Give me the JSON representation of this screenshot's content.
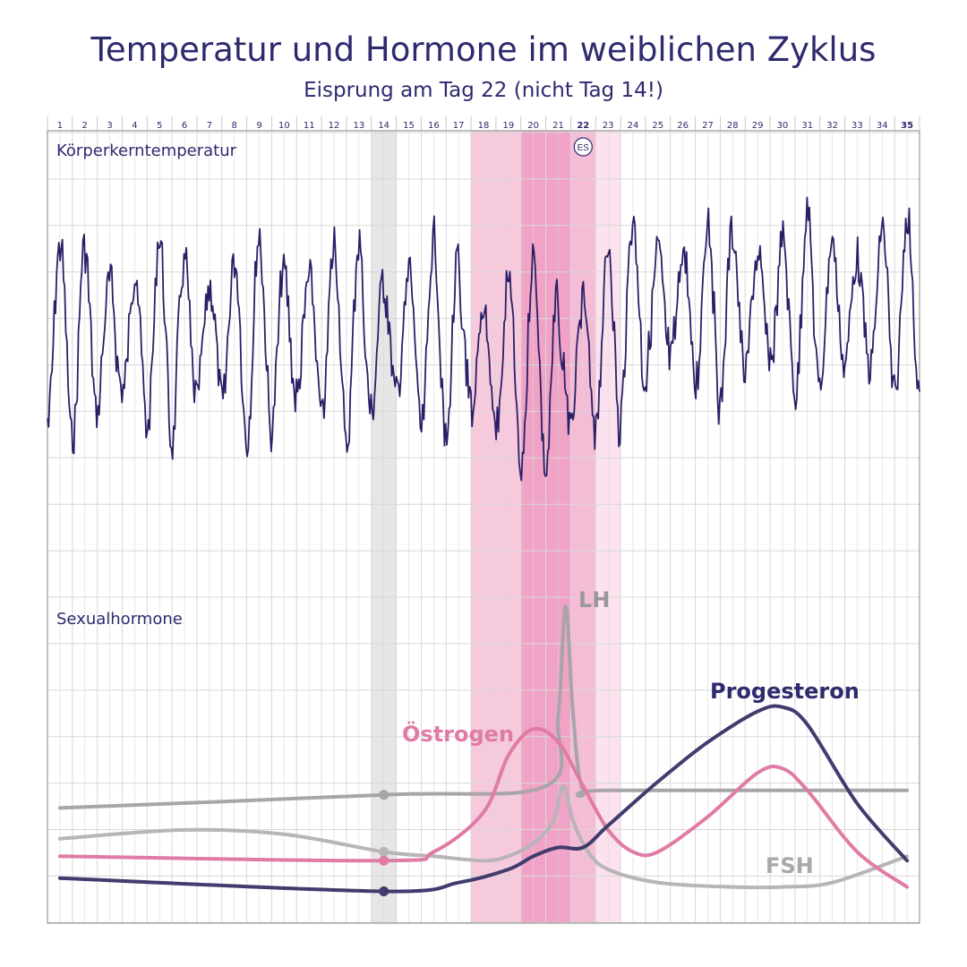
{
  "chart_data": {
    "type": "line",
    "title": "Temperatur und Hormone im weiblichen Zyklus",
    "subtitle": "Eisprung am Tag 22 (nicht Tag 14!)",
    "days": [
      "1",
      "2",
      "3",
      "4",
      "5",
      "6",
      "7",
      "8",
      "9",
      "10",
      "11",
      "12",
      "13",
      "14",
      "15",
      "16",
      "17",
      "18",
      "19",
      "20",
      "21",
      "22",
      "23",
      "24",
      "25",
      "26",
      "27",
      "28",
      "29",
      "30",
      "31",
      "32",
      "33",
      "34",
      "35"
    ],
    "bold_days": [
      "22",
      "35"
    ],
    "ovulation_marker": {
      "day": 22,
      "label": "ES"
    },
    "highlight_days": {
      "gray": [
        14
      ],
      "pink_light": [
        18,
        19
      ],
      "pink_dark": [
        20,
        21
      ],
      "pink_medium": [
        22
      ],
      "pink_pale": [
        23
      ]
    },
    "temperature_panel": {
      "label": "Körperkerntemperatur",
      "color": "#2a1f66",
      "oscillation_period_days": 1,
      "note_days_with_drop": [
        17,
        21
      ]
    },
    "hormone_panel": {
      "label": "Sexualhormone",
      "series": [
        {
          "name": "LH",
          "color": "#a9a4a8",
          "x": [
            1,
            14,
            20.5,
            21.0,
            21.3,
            21.6,
            22.0,
            23,
            35
          ],
          "y": [
            2.4,
            2.7,
            2.9,
            4.5,
            7.0,
            4.5,
            2.8,
            2.8,
            2.8
          ]
        },
        {
          "name": "Östrogen",
          "color": "#e07ba5",
          "x": [
            1,
            14,
            16,
            18,
            19,
            20,
            21,
            22,
            23,
            24,
            25,
            27,
            29,
            30,
            31,
            33,
            35
          ],
          "y": [
            1.3,
            1.2,
            1.4,
            2.3,
            3.6,
            4.2,
            3.9,
            2.9,
            1.9,
            1.4,
            1.4,
            2.2,
            3.2,
            3.3,
            2.8,
            1.4,
            0.6
          ]
        },
        {
          "name": "FSH",
          "color": "#b8b4b8",
          "x": [
            1,
            6,
            10,
            14,
            16,
            18,
            19,
            20,
            20.8,
            21.2,
            21.6,
            22.2,
            23,
            25,
            28,
            30,
            32,
            35
          ],
          "y": [
            1.7,
            1.9,
            1.8,
            1.4,
            1.3,
            1.2,
            1.3,
            1.6,
            2.1,
            2.9,
            2.1,
            1.4,
            1.0,
            0.7,
            0.6,
            0.6,
            0.7,
            1.3
          ]
        },
        {
          "name": "Progesteron",
          "color": "#403c6e",
          "x": [
            1,
            14,
            17,
            19,
            20,
            21,
            22,
            23,
            25,
            27,
            29,
            30,
            31,
            33,
            35
          ],
          "y": [
            0.8,
            0.5,
            0.7,
            1.0,
            1.3,
            1.5,
            1.5,
            2.0,
            3.0,
            3.9,
            4.6,
            4.7,
            4.3,
            2.5,
            1.2
          ]
        }
      ]
    },
    "grid": true
  },
  "colors": {
    "title": "#2d2a6e",
    "grid": "#d8d8d8",
    "highlight_gray": "#e6e6e6",
    "pink_light": "#f7c9dd",
    "pink_dark": "#f0a3c6",
    "pink_medium": "#f5bcd6",
    "pink_pale": "#fbe2ee"
  }
}
